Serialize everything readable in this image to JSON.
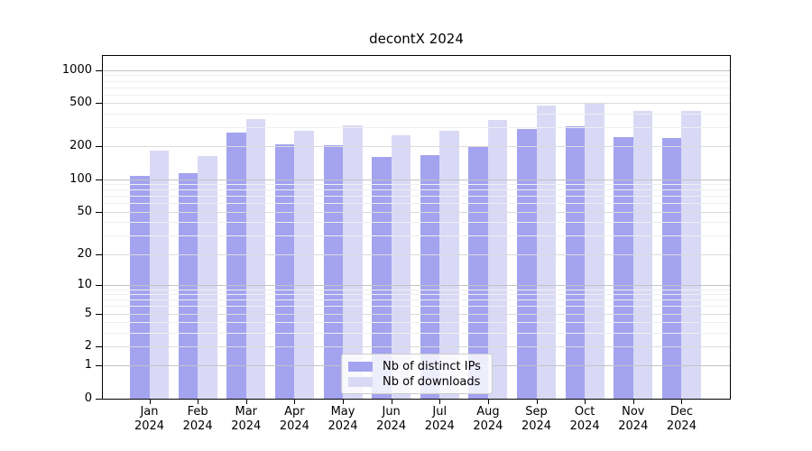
{
  "chart_data": {
    "type": "bar",
    "title": "decontX 2024",
    "categories": [
      "Jan",
      "Feb",
      "Mar",
      "Apr",
      "May",
      "Jun",
      "Jul",
      "Aug",
      "Sep",
      "Oct",
      "Nov",
      "Dec"
    ],
    "category_year": "2024",
    "series": [
      {
        "name": "Nb of distinct IPs",
        "color": "#a3a3ef",
        "values": [
          107,
          113,
          268,
          209,
          204,
          161,
          166,
          198,
          290,
          305,
          244,
          240
        ]
      },
      {
        "name": "Nb of downloads",
        "color": "#d9d9f6",
        "values": [
          184,
          163,
          355,
          278,
          315,
          253,
          281,
          350,
          473,
          505,
          427,
          421
        ]
      }
    ],
    "yscale": "log1p",
    "ylim": [
      0,
      1350
    ],
    "yticks": [
      0,
      1,
      2,
      5,
      10,
      20,
      50,
      100,
      200,
      500,
      1000
    ],
    "major_gridlines": [
      1,
      10,
      100,
      1000
    ],
    "labeled_gridlines": [
      2,
      5,
      20,
      50,
      200,
      500
    ],
    "minor_gridlines": [
      3,
      4,
      6,
      7,
      8,
      9,
      30,
      40,
      60,
      70,
      80,
      90,
      300,
      400,
      600,
      700,
      800,
      900
    ],
    "grid": true,
    "legend_position": "lower center"
  }
}
